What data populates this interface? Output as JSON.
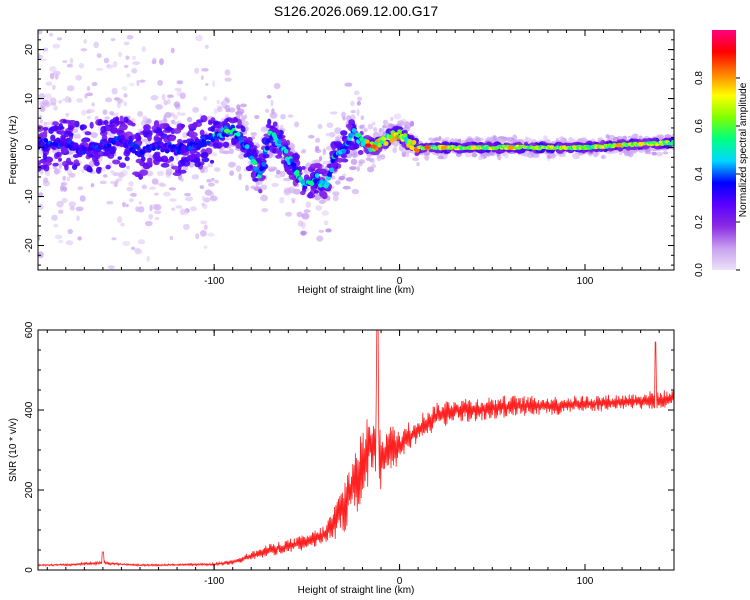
{
  "chart_data": [
    {
      "type": "heatmap",
      "title": "S126.2026.069.12.00.G17",
      "xlabel": "Height of straight line (km)",
      "ylabel": "Frequency (Hz)",
      "xlim": [
        -195,
        148
      ],
      "ylim": [
        -25,
        24
      ],
      "x_ticks": [
        -100,
        0,
        100
      ],
      "y_ticks": [
        -20,
        -10,
        0,
        10,
        20
      ],
      "colorbar": {
        "label": "Normalized spectral amplitude",
        "range": [
          0,
          1
        ],
        "ticks": [
          0.0,
          0.2,
          0.4,
          0.6,
          0.8
        ],
        "colors": [
          "#ece2f8",
          "#c8a0f0",
          "#8a2be2",
          "#5a00ff",
          "#0000ff",
          "#00d8ff",
          "#00ff80",
          "#80ff00",
          "#ffff00",
          "#ff8000",
          "#ff0000",
          "#ff0080"
        ]
      },
      "ridge": {
        "x": [
          -195,
          -180,
          -170,
          -160,
          -150,
          -140,
          -130,
          -120,
          -110,
          -100,
          -95,
          -90,
          -85,
          -80,
          -75,
          -70,
          -65,
          -60,
          -55,
          -50,
          -45,
          -40,
          -35,
          -30,
          -25,
          -20,
          -15,
          -10,
          -5,
          0,
          5,
          10,
          20,
          40,
          60,
          80,
          100,
          120,
          148
        ],
        "y": [
          0.5,
          1,
          -0.5,
          0.5,
          1.5,
          -1,
          0.5,
          -0.5,
          0.5,
          2,
          3,
          4,
          1.5,
          -2,
          -6,
          3,
          1,
          -2,
          -5,
          -8,
          -6,
          -8,
          -2,
          0,
          3,
          1,
          0,
          1,
          2,
          3,
          1,
          0,
          0,
          0,
          0,
          0,
          0,
          0.5,
          1
        ]
      },
      "peak_amplitude": 1.0
    },
    {
      "type": "line",
      "xlabel": "Height of straight line (km)",
      "ylabel": "SNR (10 * v/v)",
      "xlim": [
        -195,
        148
      ],
      "ylim": [
        0,
        600
      ],
      "x_ticks": [
        -100,
        0,
        100
      ],
      "y_ticks": [
        0,
        200,
        400,
        600
      ],
      "series": [
        {
          "name": "SNR",
          "color": "#ff2020",
          "x": [
            -195,
            -180,
            -160,
            -150,
            -140,
            -120,
            -100,
            -90,
            -80,
            -70,
            -60,
            -50,
            -40,
            -35,
            -30,
            -25,
            -20,
            -15,
            -12,
            -10,
            -5,
            0,
            10,
            20,
            30,
            40,
            60,
            80,
            100,
            120,
            138,
            148
          ],
          "y": [
            12,
            13,
            18,
            14,
            12,
            13,
            14,
            20,
            35,
            50,
            60,
            70,
            90,
            120,
            160,
            210,
            260,
            320,
            330,
            280,
            300,
            310,
            350,
            385,
            400,
            400,
            410,
            410,
            415,
            420,
            425,
            430
          ],
          "noise": [
            2,
            2,
            4,
            2,
            2,
            2,
            3,
            6,
            10,
            14,
            16,
            18,
            22,
            40,
            60,
            80,
            90,
            70,
            90,
            80,
            60,
            40,
            35,
            30,
            30,
            28,
            25,
            22,
            20,
            18,
            22,
            18
          ],
          "spikes": [
            {
              "x": -12,
              "y": 600
            },
            {
              "x": 138,
              "y": 570
            },
            {
              "x": -160,
              "y": 45
            }
          ]
        }
      ]
    }
  ]
}
